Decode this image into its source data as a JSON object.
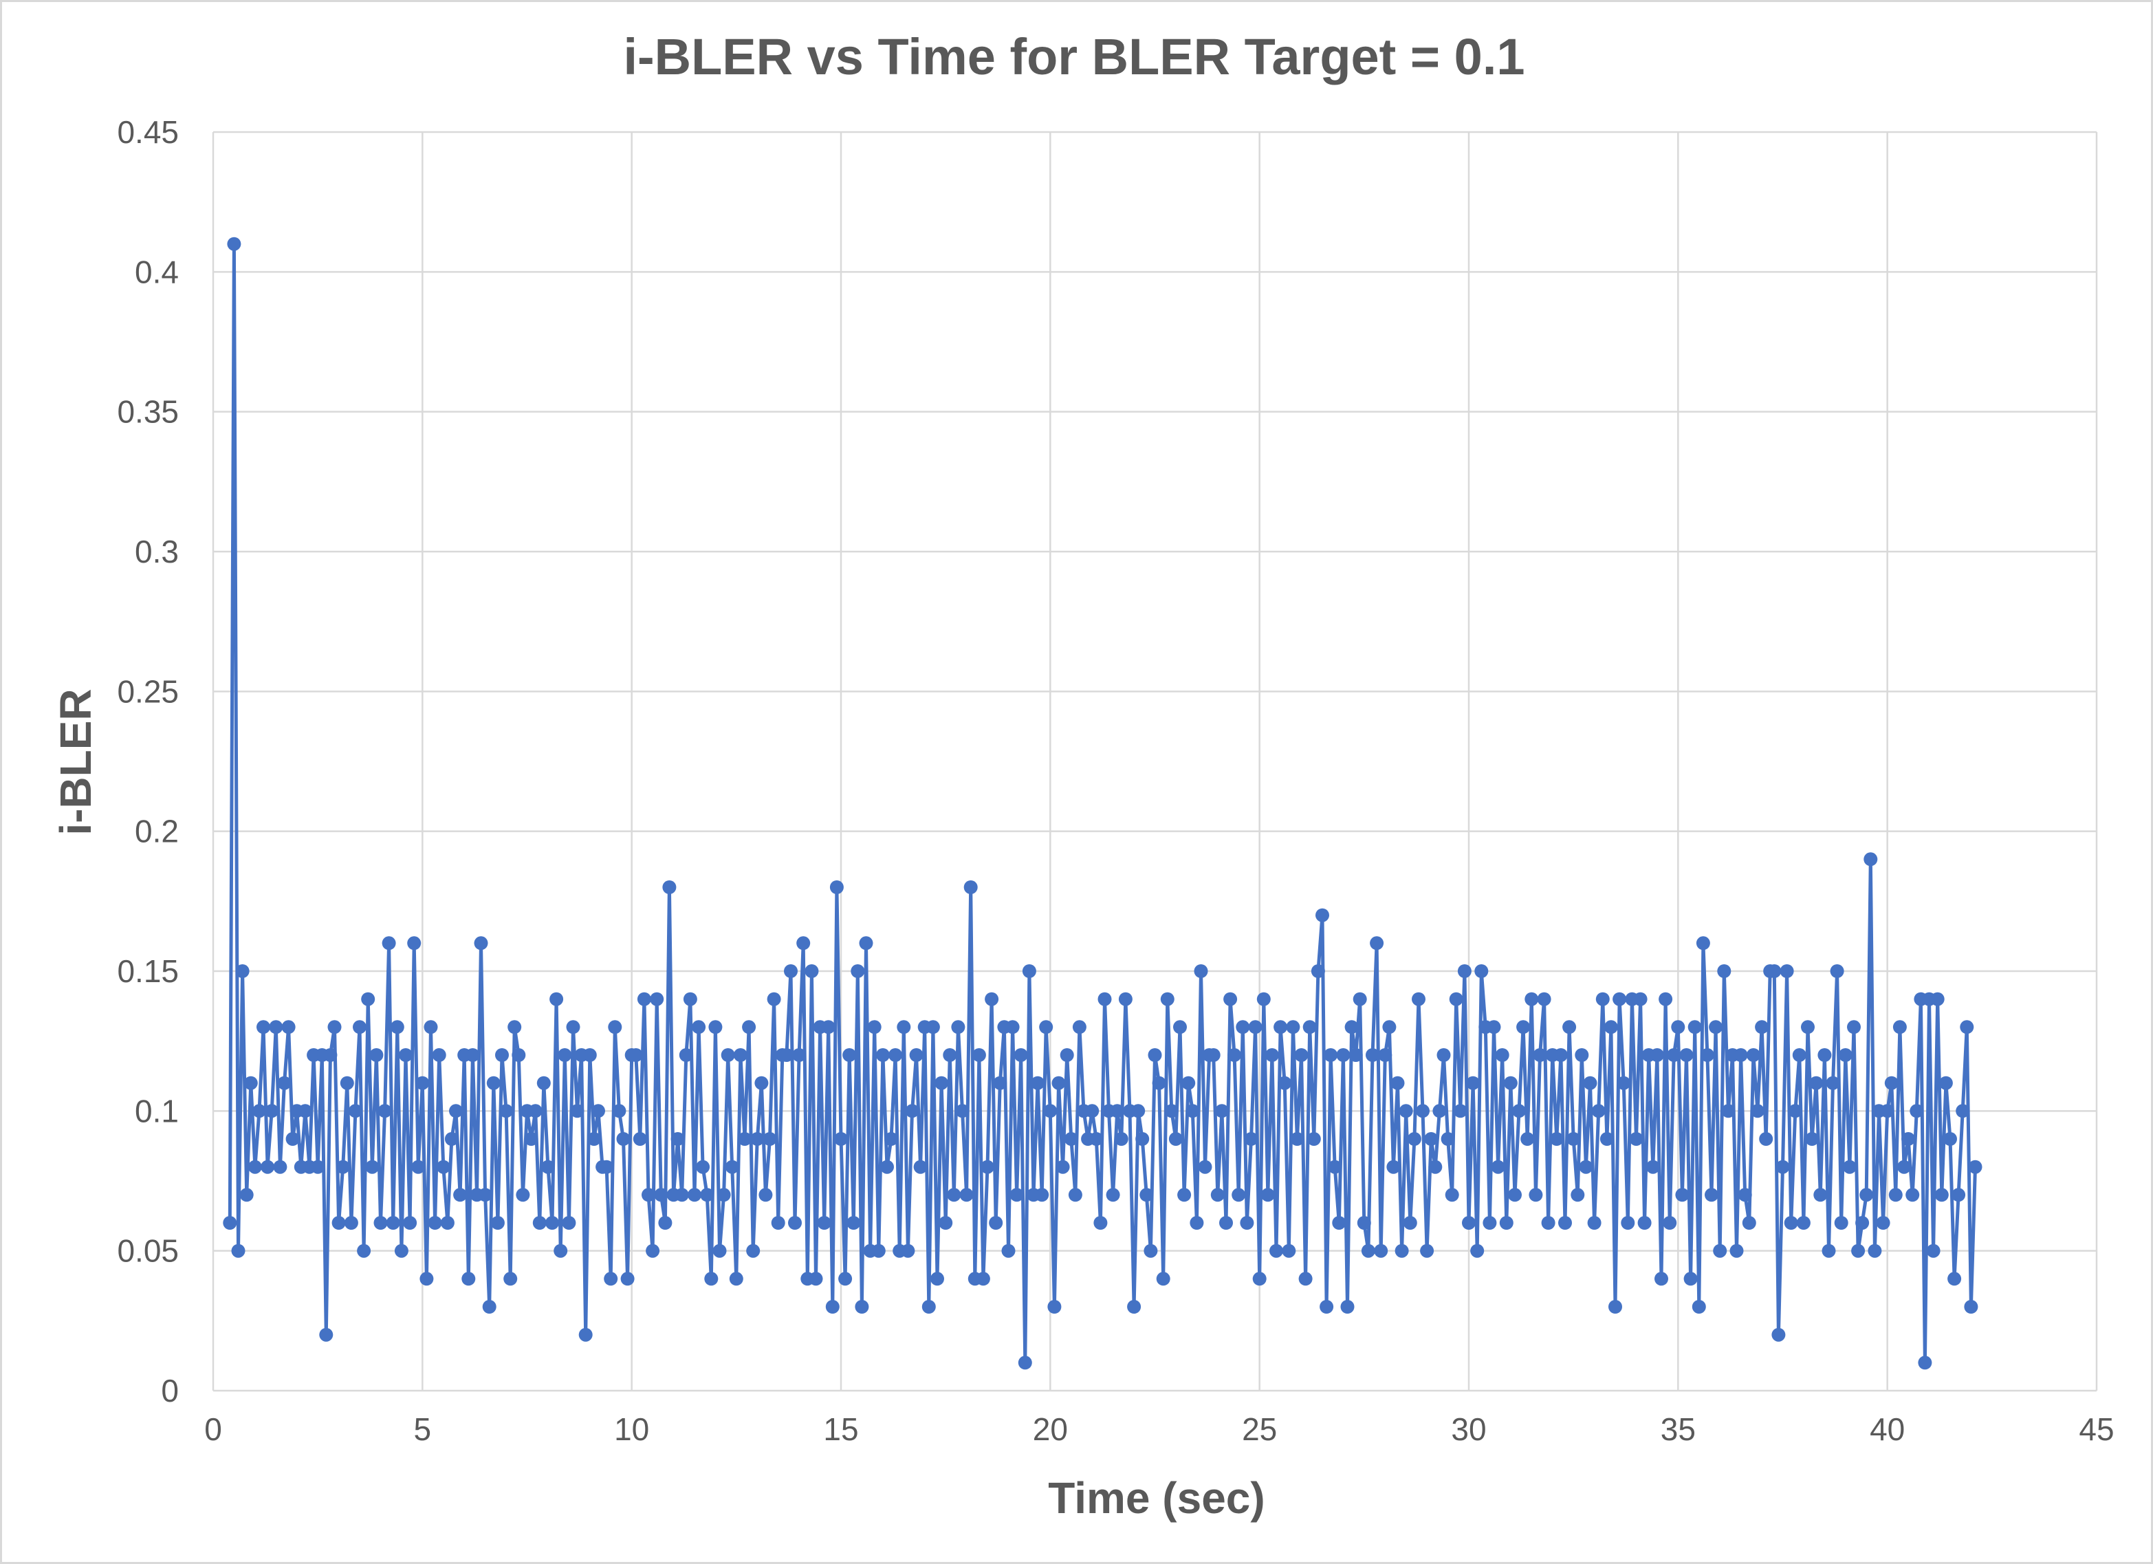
{
  "chart_data": {
    "type": "line",
    "title": "i-BLER vs Time for BLER Target = 0.1",
    "xlabel": "Time (sec)",
    "ylabel": "i-BLER",
    "xlim": [
      0,
      45
    ],
    "ylim": [
      0,
      0.45
    ],
    "x_ticks": [
      "0",
      "5",
      "10",
      "15",
      "20",
      "25",
      "30",
      "35",
      "40",
      "45"
    ],
    "y_ticks": [
      "0",
      "0.05",
      "0.1",
      "0.15",
      "0.2",
      "0.25",
      "0.3",
      "0.35",
      "0.4",
      "0.45"
    ],
    "grid": true,
    "legend": "none",
    "markers": true,
    "series": [
      {
        "color": "#4472c4",
        "x_start": 0.4,
        "x_step": 0.1,
        "values": [
          0.06,
          0.41,
          0.05,
          0.15,
          0.07,
          0.11,
          0.08,
          0.1,
          0.13,
          0.08,
          0.1,
          0.13,
          0.08,
          0.11,
          0.13,
          0.09,
          0.1,
          0.08,
          0.1,
          0.08,
          0.12,
          0.08,
          0.12,
          0.02,
          0.12,
          0.13,
          0.06,
          0.08,
          0.11,
          0.06,
          0.1,
          0.13,
          0.05,
          0.14,
          0.08,
          0.12,
          0.06,
          0.1,
          0.16,
          0.06,
          0.13,
          0.05,
          0.12,
          0.06,
          0.16,
          0.08,
          0.11,
          0.04,
          0.13,
          0.06,
          0.12,
          0.08,
          0.06,
          0.09,
          0.1,
          0.07,
          0.12,
          0.04,
          0.12,
          0.07,
          0.16,
          0.07,
          0.03,
          0.11,
          0.06,
          0.12,
          0.1,
          0.04,
          0.13,
          0.12,
          0.07,
          0.1,
          0.09,
          0.1,
          0.06,
          0.11,
          0.08,
          0.06,
          0.14,
          0.05,
          0.12,
          0.06,
          0.13,
          0.1,
          0.12,
          0.02,
          0.12,
          0.09,
          0.1,
          0.08,
          0.08,
          0.04,
          0.13,
          0.1,
          0.09,
          0.04,
          0.12,
          0.12,
          0.09,
          0.14,
          0.07,
          0.05,
          0.14,
          0.07,
          0.06,
          0.18,
          0.07,
          0.09,
          0.07,
          0.12,
          0.14,
          0.07,
          0.13,
          0.08,
          0.07,
          0.04,
          0.13,
          0.05,
          0.07,
          0.12,
          0.08,
          0.04,
          0.12,
          0.09,
          0.13,
          0.05,
          0.09,
          0.11,
          0.07,
          0.09,
          0.14,
          0.06,
          0.12,
          0.12,
          0.15,
          0.06,
          0.12,
          0.16,
          0.04,
          0.15,
          0.04,
          0.13,
          0.06,
          0.13,
          0.03,
          0.18,
          0.09,
          0.04,
          0.12,
          0.06,
          0.15,
          0.03,
          0.16,
          0.05,
          0.13,
          0.05,
          0.12,
          0.08,
          0.09,
          0.12,
          0.05,
          0.13,
          0.05,
          0.1,
          0.12,
          0.08,
          0.13,
          0.03,
          0.13,
          0.04,
          0.11,
          0.06,
          0.12,
          0.07,
          0.13,
          0.1,
          0.07,
          0.18,
          0.04,
          0.12,
          0.04,
          0.08,
          0.14,
          0.06,
          0.11,
          0.13,
          0.05,
          0.13,
          0.07,
          0.12,
          0.01,
          0.15,
          0.07,
          0.11,
          0.07,
          0.13,
          0.1,
          0.03,
          0.11,
          0.08,
          0.12,
          0.09,
          0.07,
          0.13,
          0.1,
          0.09,
          0.1,
          0.09,
          0.06,
          0.14,
          0.1,
          0.07,
          0.1,
          0.09,
          0.14,
          0.1,
          0.03,
          0.1,
          0.09,
          0.07,
          0.05,
          0.12,
          0.11,
          0.04,
          0.14,
          0.1,
          0.09,
          0.13,
          0.07,
          0.11,
          0.1,
          0.06,
          0.15,
          0.08,
          0.12,
          0.12,
          0.07,
          0.1,
          0.06,
          0.14,
          0.12,
          0.07,
          0.13,
          0.06,
          0.09,
          0.13,
          0.04,
          0.14,
          0.07,
          0.12,
          0.05,
          0.13,
          0.11,
          0.05,
          0.13,
          0.09,
          0.12,
          0.04,
          0.13,
          0.09,
          0.15,
          0.17,
          0.03,
          0.12,
          0.08,
          0.06,
          0.12,
          0.03,
          0.13,
          0.12,
          0.14,
          0.06,
          0.05,
          0.12,
          0.16,
          0.05,
          0.12,
          0.13,
          0.08,
          0.11,
          0.05,
          0.1,
          0.06,
          0.09,
          0.14,
          0.1,
          0.05,
          0.09,
          0.08,
          0.1,
          0.12,
          0.09,
          0.07,
          0.14,
          0.1,
          0.15,
          0.06,
          0.11,
          0.05,
          0.15,
          0.13,
          0.06,
          0.13,
          0.08,
          0.12,
          0.06,
          0.11,
          0.07,
          0.1,
          0.13,
          0.09,
          0.14,
          0.07,
          0.12,
          0.14,
          0.06,
          0.12,
          0.09,
          0.12,
          0.06,
          0.13,
          0.09,
          0.07,
          0.12,
          0.08,
          0.11,
          0.06,
          0.1,
          0.14,
          0.09,
          0.13,
          0.03,
          0.14,
          0.11,
          0.06,
          0.14,
          0.09,
          0.14,
          0.06,
          0.12,
          0.08,
          0.12,
          0.04,
          0.14,
          0.06,
          0.12,
          0.13,
          0.07,
          0.12,
          0.04,
          0.13,
          0.03,
          0.16,
          0.12,
          0.07,
          0.13,
          0.05,
          0.15,
          0.1,
          0.12,
          0.05,
          0.12,
          0.07,
          0.06,
          0.12,
          0.1,
          0.13,
          0.09,
          0.15,
          0.15,
          0.02,
          0.08,
          0.15,
          0.06,
          0.1,
          0.12,
          0.06,
          0.13,
          0.09,
          0.11,
          0.07,
          0.12,
          0.05,
          0.11,
          0.15,
          0.06,
          0.12,
          0.08,
          0.13,
          0.05,
          0.06,
          0.07,
          0.19,
          0.05,
          0.1,
          0.06,
          0.1,
          0.11,
          0.07,
          0.13,
          0.08,
          0.09,
          0.07,
          0.1,
          0.14,
          0.01,
          0.14,
          0.05,
          0.14,
          0.07,
          0.11,
          0.09,
          0.04,
          0.07,
          0.1,
          0.13,
          0.03,
          0.08
        ]
      }
    ]
  }
}
